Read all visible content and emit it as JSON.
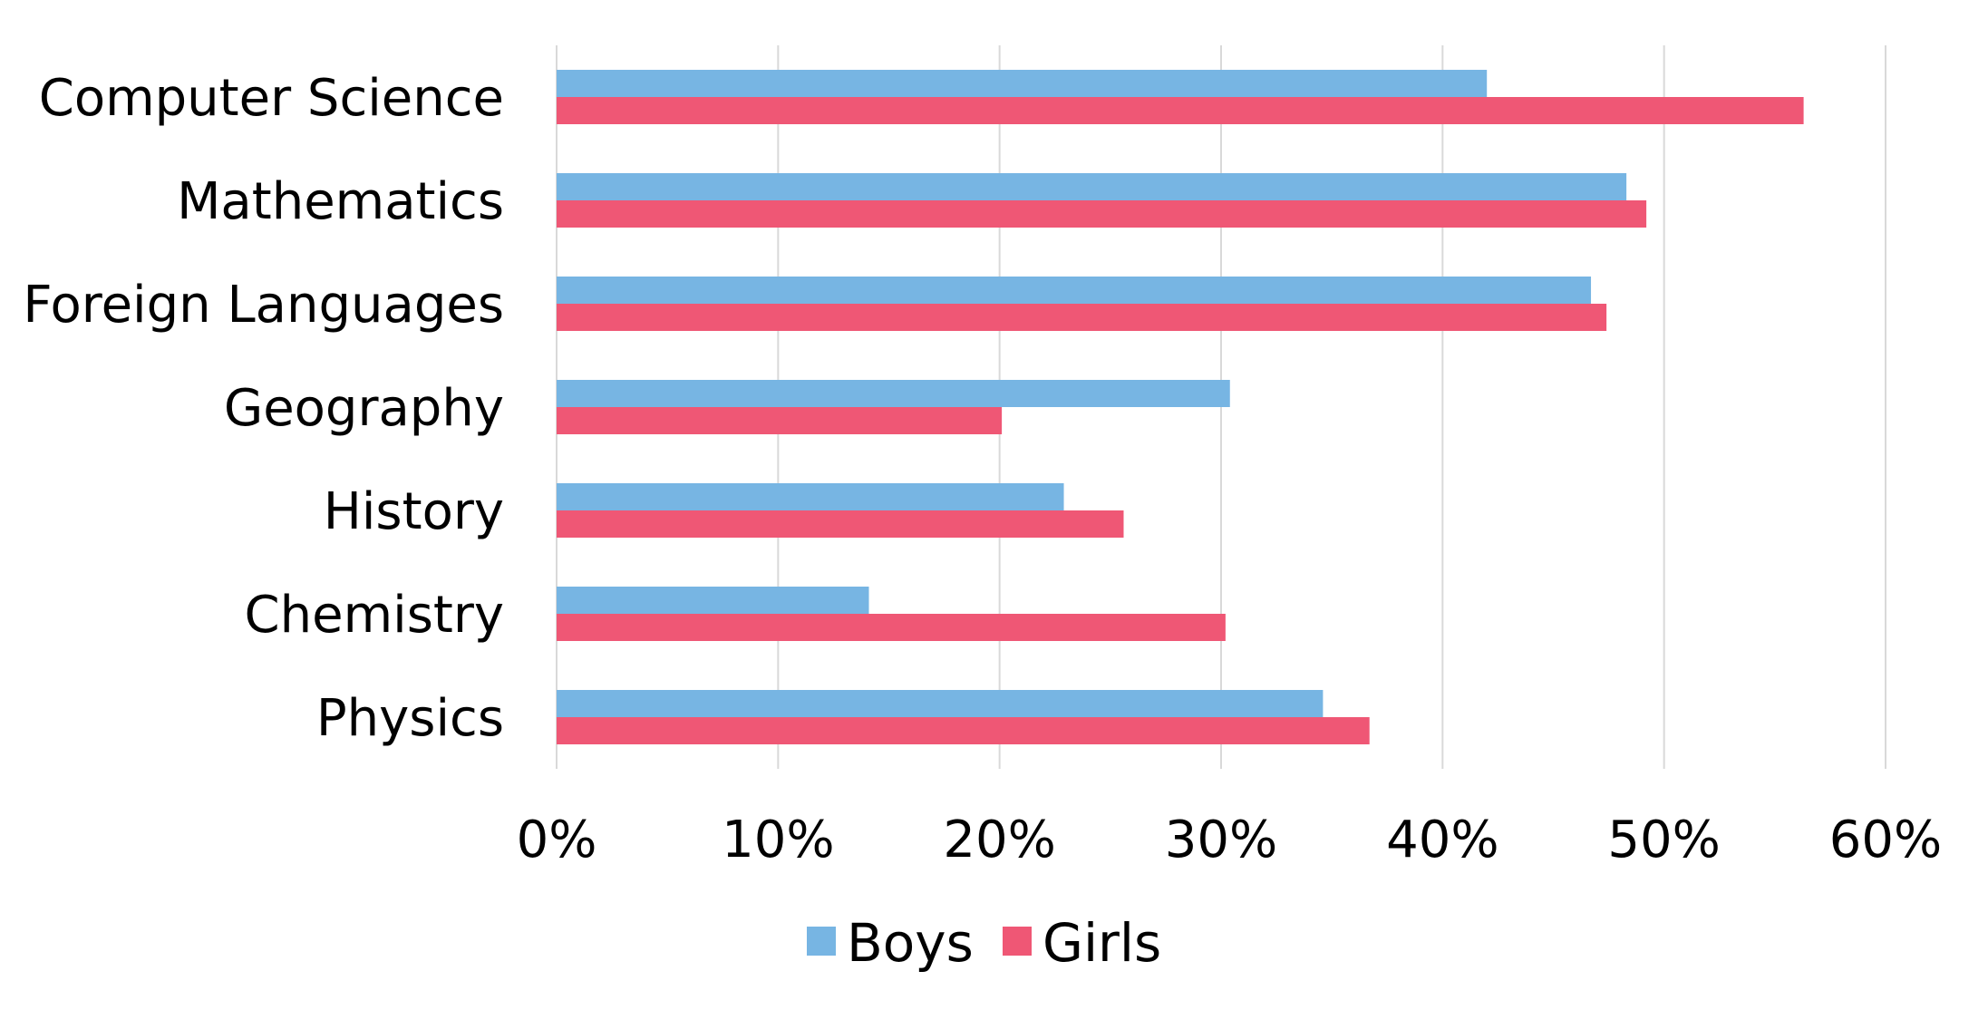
{
  "chart_data": {
    "type": "bar",
    "orientation": "horizontal",
    "categories": [
      "Computer Science",
      "Mathematics",
      "Foreign Languages",
      "Geography",
      "History",
      "Chemistry",
      "Physics"
    ],
    "series": [
      {
        "name": "Boys",
        "color": "#77b5e3",
        "values": [
          42,
          48.3,
          46.7,
          30.4,
          22.9,
          14.1,
          34.6
        ]
      },
      {
        "name": "Girls",
        "color": "#ef5775",
        "values": [
          56.3,
          49.2,
          47.4,
          20.1,
          25.6,
          30.2,
          36.7
        ]
      }
    ],
    "xlim": [
      0,
      60
    ],
    "xticks": [
      0,
      10,
      20,
      30,
      40,
      50,
      60
    ],
    "xtick_labels": [
      "0%",
      "10%",
      "20%",
      "30%",
      "40%",
      "50%",
      "60%"
    ],
    "title": "",
    "xlabel": "",
    "ylabel": "",
    "grid": "vertical",
    "grid_color": "#d9d9d9",
    "legend_position": "bottom"
  }
}
